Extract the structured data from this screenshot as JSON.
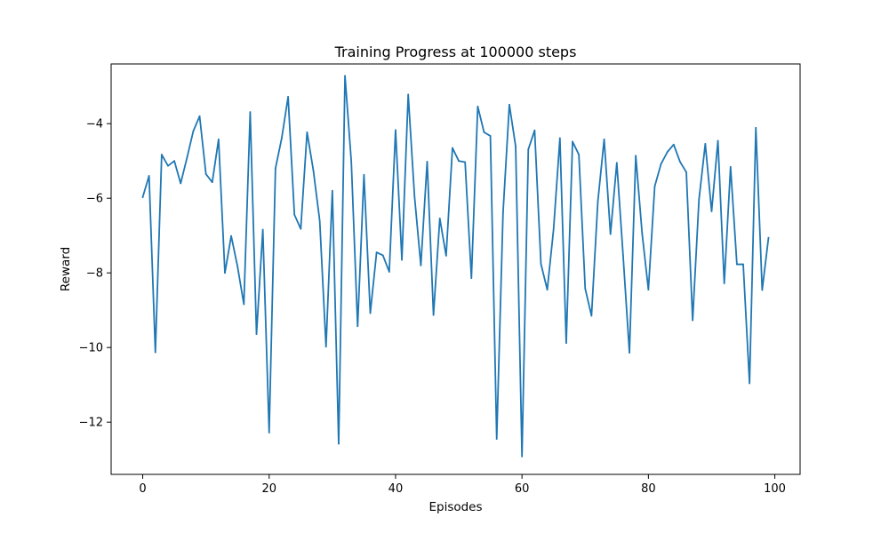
{
  "chart_data": {
    "type": "line",
    "title": "Training Progress at 100000 steps",
    "xlabel": "Episodes",
    "ylabel": "Reward",
    "xlim": [
      -5.0,
      104.0
    ],
    "ylim": [
      -13.4,
      -2.4
    ],
    "xticks": [
      0,
      20,
      40,
      60,
      80,
      100
    ],
    "yticks": [
      -12,
      -10,
      -8,
      -6,
      -4
    ],
    "xtick_labels": [
      "0",
      "20",
      "40",
      "60",
      "80",
      "100"
    ],
    "ytick_labels": [
      "−12",
      "−10",
      "−8",
      "−6",
      "−4"
    ],
    "grid": false,
    "legend": "none",
    "series": [
      {
        "color": "#1f77b4",
        "x": [
          0,
          1,
          2,
          3,
          4,
          5,
          6,
          7,
          8,
          9,
          10,
          11,
          12,
          13,
          14,
          15,
          16,
          17,
          18,
          19,
          20,
          21,
          22,
          23,
          24,
          25,
          26,
          27,
          28,
          29,
          30,
          31,
          32,
          33,
          34,
          35,
          36,
          37,
          38,
          39,
          40,
          41,
          42,
          43,
          44,
          45,
          46,
          47,
          48,
          49,
          50,
          51,
          52,
          53,
          54,
          55,
          56,
          57,
          58,
          59,
          60,
          61,
          62,
          63,
          64,
          65,
          66,
          67,
          68,
          69,
          70,
          71,
          72,
          73,
          74,
          75,
          76,
          77,
          78,
          79,
          80,
          81,
          82,
          83,
          84,
          85,
          86,
          87,
          88,
          89,
          90,
          91,
          92,
          93,
          94,
          95,
          96,
          97,
          98,
          99
        ],
        "y": [
          -5.97,
          -5.4,
          -10.13,
          -4.83,
          -5.13,
          -5.0,
          -5.6,
          -4.92,
          -4.2,
          -3.8,
          -5.35,
          -5.57,
          -4.42,
          -8.0,
          -7.01,
          -7.83,
          -8.84,
          -3.69,
          -9.64,
          -6.84,
          -12.28,
          -5.2,
          -4.38,
          -3.28,
          -6.44,
          -6.82,
          -4.23,
          -5.26,
          -6.6,
          -9.98,
          -5.8,
          -12.58,
          -2.72,
          -5.02,
          -9.43,
          -5.37,
          -9.08,
          -7.45,
          -7.53,
          -7.97,
          -4.17,
          -7.65,
          -3.22,
          -5.95,
          -7.8,
          -5.02,
          -9.13,
          -6.54,
          -7.54,
          -4.65,
          -5.0,
          -5.03,
          -8.14,
          -3.54,
          -4.23,
          -4.33,
          -12.45,
          -6.4,
          -3.49,
          -4.61,
          -12.92,
          -4.69,
          -4.18,
          -7.76,
          -8.45,
          -6.83,
          -4.39,
          -9.88,
          -4.48,
          -4.83,
          -8.42,
          -9.15,
          -6.09,
          -4.42,
          -6.96,
          -5.05,
          -7.54,
          -10.14,
          -4.86,
          -6.93,
          -8.45,
          -5.68,
          -5.08,
          -4.76,
          -4.56,
          -5.02,
          -5.3,
          -9.27,
          -6.04,
          -4.54,
          -6.35,
          -4.46,
          -8.28,
          -5.16,
          -7.77,
          -7.77,
          -10.96,
          -4.11,
          -8.46,
          -7.06
        ]
      }
    ]
  }
}
